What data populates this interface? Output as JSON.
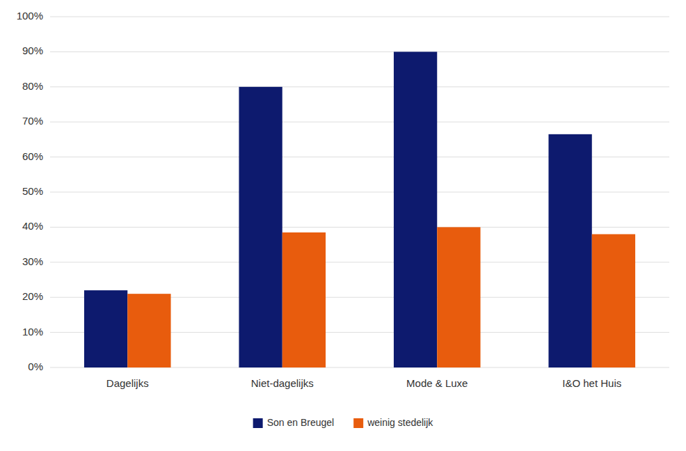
{
  "chart_data": {
    "type": "bar",
    "categories": [
      "Dagelijks",
      "Niet-dagelijks",
      "Mode & Luxe",
      "I&O het Huis"
    ],
    "series": [
      {
        "name": "Son en Breugel",
        "color": "#0d1a6e",
        "values": [
          0.22,
          0.8,
          0.9,
          0.665
        ]
      },
      {
        "name": "weinig stedelijk",
        "color": "#e85c0d",
        "values": [
          0.21,
          0.385,
          0.4,
          0.38
        ]
      }
    ],
    "ylim": [
      0,
      1.0
    ],
    "yticks": [
      {
        "value": 0.0,
        "label": "0%"
      },
      {
        "value": 0.1,
        "label": "10%"
      },
      {
        "value": 0.2,
        "label": "20%"
      },
      {
        "value": 0.3,
        "label": "30%"
      },
      {
        "value": 0.4,
        "label": "40%"
      },
      {
        "value": 0.5,
        "label": "50%"
      },
      {
        "value": 0.6,
        "label": "60%"
      },
      {
        "value": 0.7,
        "label": "70%"
      },
      {
        "value": 0.8,
        "label": "80%"
      },
      {
        "value": 0.9,
        "label": "90%"
      },
      {
        "value": 1.0,
        "label": "100%"
      }
    ],
    "grid": true,
    "legend": "bottom"
  }
}
